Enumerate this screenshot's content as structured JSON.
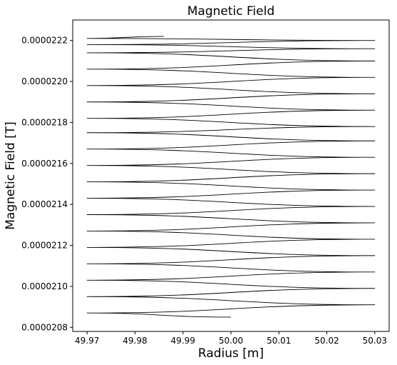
{
  "chart_data": {
    "type": "line",
    "title": "Magnetic Field",
    "xlabel": "Radius [m]",
    "ylabel": "Magnetic Field [T]",
    "xlim": [
      49.967,
      50.033
    ],
    "ylim": [
      2.078e-05,
      2.23e-05
    ],
    "xticks": [
      49.97,
      49.98,
      49.99,
      50.0,
      50.01,
      50.02,
      50.03
    ],
    "xtick_labels": [
      "49.97",
      "49.98",
      "49.99",
      "50.00",
      "50.01",
      "50.02",
      "50.03"
    ],
    "yticks": [
      2.08e-05,
      2.1e-05,
      2.12e-05,
      2.14e-05,
      2.16e-05,
      2.18e-05,
      2.2e-05,
      2.22e-05
    ],
    "ytick_labels": [
      "0.0000208",
      "0.0000210",
      "0.0000212",
      "0.0000214",
      "0.0000216",
      "0.0000218",
      "0.0000220",
      "0.0000222"
    ],
    "grid": false,
    "series": [
      {
        "color": "#000000",
        "x": [
          50.0,
          49.97,
          50.03,
          49.97,
          50.03,
          49.97,
          50.03,
          49.97,
          50.03,
          49.97,
          50.03,
          49.97,
          50.03,
          49.97,
          50.03,
          49.97,
          50.03,
          49.97,
          50.03,
          49.97,
          50.03,
          49.97,
          50.03,
          49.97,
          50.03,
          49.97,
          50.03,
          49.97,
          50.03,
          49.97,
          50.03,
          49.97,
          50.03,
          49.97,
          50.03,
          49.97,
          50.03,
          49.97,
          49.986
        ],
        "y": [
          2.085e-05,
          2.087e-05,
          2.091e-05,
          2.095e-05,
          2.099e-05,
          2.103e-05,
          2.107e-05,
          2.111e-05,
          2.115e-05,
          2.119e-05,
          2.123e-05,
          2.127e-05,
          2.131e-05,
          2.135e-05,
          2.139e-05,
          2.143e-05,
          2.147e-05,
          2.151e-05,
          2.155e-05,
          2.159e-05,
          2.163e-05,
          2.167e-05,
          2.171e-05,
          2.175e-05,
          2.178e-05,
          2.182e-05,
          2.186e-05,
          2.19e-05,
          2.194e-05,
          2.198e-05,
          2.202e-05,
          2.206e-05,
          2.21e-05,
          2.214e-05,
          2.216e-05,
          2.218e-05,
          2.22e-05,
          2.221e-05,
          2.222e-05
        ]
      }
    ]
  }
}
